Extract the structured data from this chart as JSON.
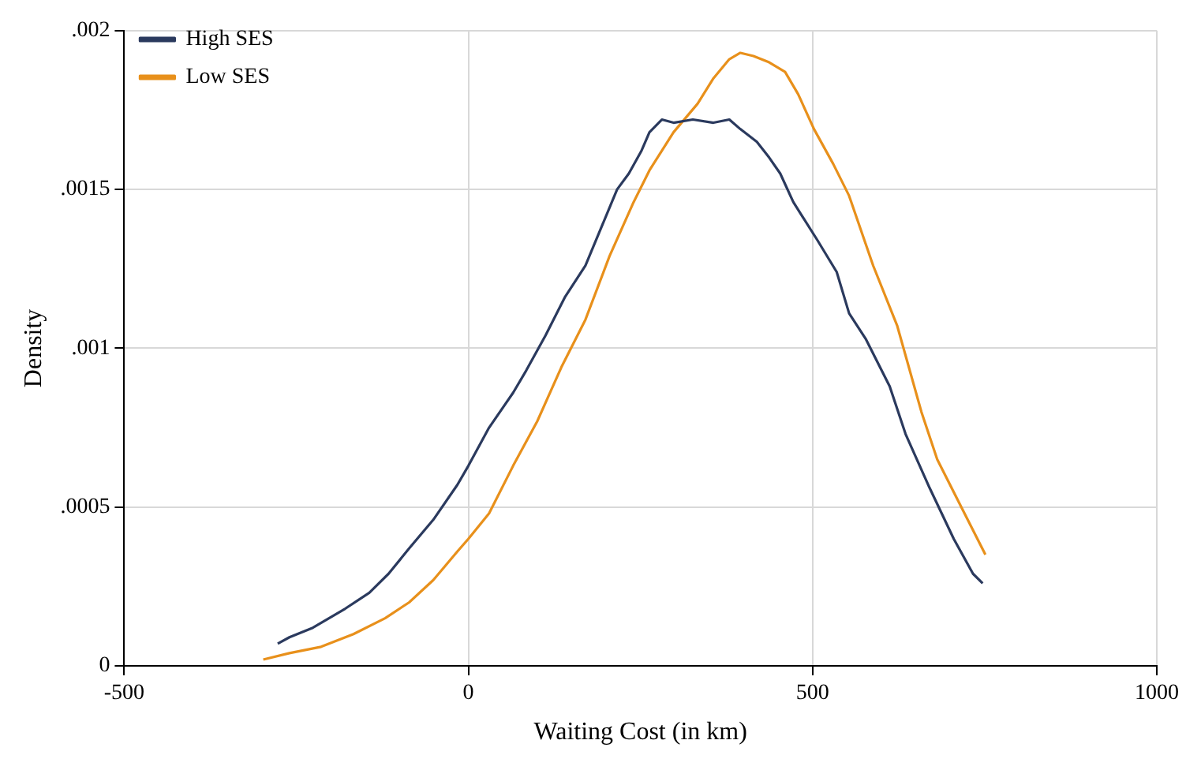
{
  "chart_data": {
    "type": "line",
    "xlabel": "Waiting Cost (in km)",
    "ylabel": "Density",
    "xlim": [
      -500,
      1000
    ],
    "xticks": [
      -500,
      0,
      500,
      1000
    ],
    "ylim": [
      0,
      0.002
    ],
    "yticks": [
      0,
      {
        "value": 0.0005,
        "label": ".0005"
      },
      {
        "value": 0.001,
        "label": ".001"
      },
      {
        "value": 0.0015,
        "label": ".0015"
      },
      {
        "value": 0.002,
        "label": ".002"
      }
    ],
    "grid": true,
    "legend": "top left",
    "marker": "none",
    "line_style": "solid",
    "series": [
      {
        "name": "High SES",
        "color": "#2b3a5e",
        "x": [
          -277,
          -260,
          -226,
          -179,
          -144,
          -116,
          -86,
          -51,
          -16,
          0,
          30,
          65,
          84,
          112,
          140,
          170,
          193,
          216,
          233,
          251,
          263,
          281,
          298,
          326,
          356,
          379,
          395,
          419,
          437,
          453,
          472,
          507,
          535,
          553,
          577,
          612,
          635,
          670,
          705,
          733,
          747
        ],
        "values": [
          7e-05,
          9e-05,
          0.00012,
          0.00018,
          0.00023,
          0.00029,
          0.00037,
          0.00046,
          0.00057,
          0.00063,
          0.00075,
          0.00086,
          0.00093,
          0.00104,
          0.00116,
          0.00126,
          0.00138,
          0.0015,
          0.00155,
          0.00162,
          0.00168,
          0.00172,
          0.00171,
          0.00172,
          0.00171,
          0.00172,
          0.00169,
          0.00165,
          0.0016,
          0.00155,
          0.00146,
          0.00134,
          0.00124,
          0.00111,
          0.00103,
          0.00088,
          0.00073,
          0.00056,
          0.0004,
          0.00029,
          0.00026
        ]
      },
      {
        "name": "Low SES",
        "color": "#e8901b",
        "x": [
          -298,
          -260,
          -214,
          -167,
          -121,
          -86,
          -51,
          -16,
          0,
          30,
          65,
          100,
          135,
          170,
          205,
          240,
          263,
          298,
          333,
          356,
          379,
          395,
          414,
          437,
          460,
          479,
          502,
          530,
          553,
          588,
          623,
          658,
          681,
          716,
          751
        ],
        "values": [
          2e-05,
          4e-05,
          6e-05,
          0.0001,
          0.00015,
          0.0002,
          0.00027,
          0.00036,
          0.0004,
          0.00048,
          0.00063,
          0.00077,
          0.00094,
          0.00109,
          0.00129,
          0.00146,
          0.00156,
          0.00168,
          0.00177,
          0.00185,
          0.00191,
          0.00193,
          0.00192,
          0.0019,
          0.00187,
          0.0018,
          0.00169,
          0.00158,
          0.00148,
          0.00126,
          0.00107,
          0.0008,
          0.00065,
          0.0005,
          0.00035
        ]
      }
    ]
  }
}
